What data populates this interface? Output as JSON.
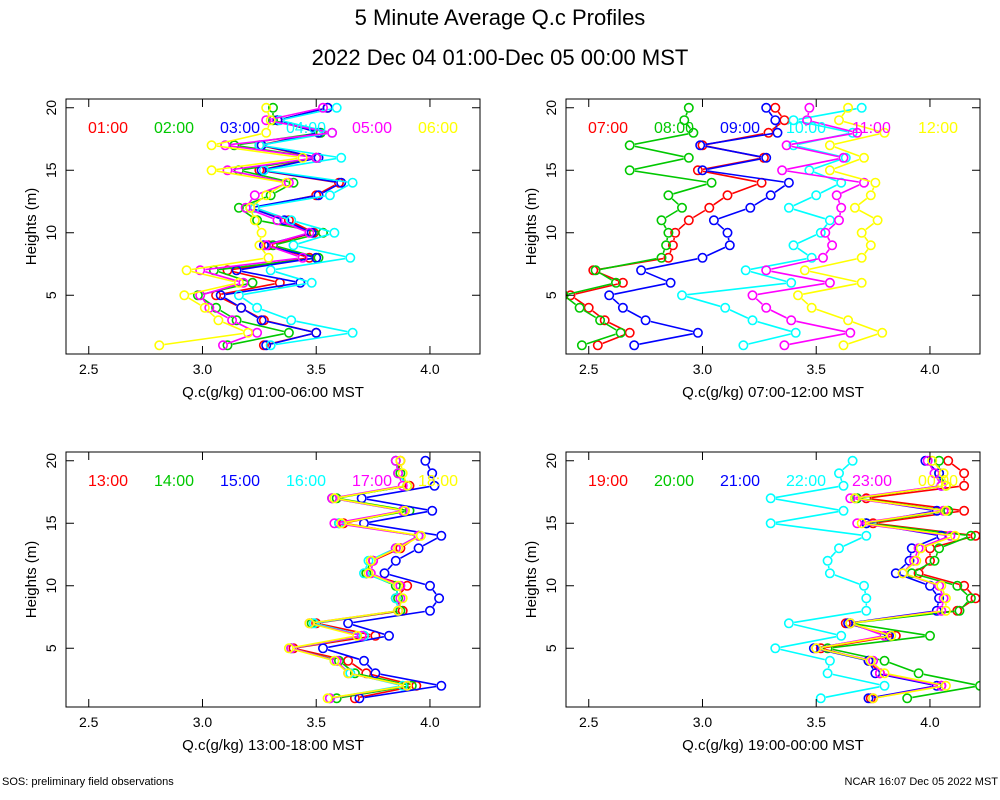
{
  "title": "5 Minute Average Q.c Profiles",
  "subtitle": "2022 Dec 04 01:00-Dec 05 00:00 MST",
  "footer": {
    "left": "SOS: preliminary field observations",
    "right": "NCAR 16:07 Dec 05 2022 MST"
  },
  "palette": {
    "red": "#ff0000",
    "green": "#00c800",
    "blue": "#0000ff",
    "cyan": "#00ffff",
    "magenta": "#ff00ff",
    "yellow": "#ffff00"
  },
  "chart_data": [
    {
      "type": "line",
      "xlabel": "Q.c(g/kg) 01:00-06:00 MST",
      "ylabel": "Heights (m)",
      "xlim": [
        2.4,
        4.22
      ],
      "ylim": [
        0.3,
        20.7
      ],
      "xticks": [
        "2.5",
        "3.0",
        "3.5",
        "4.0"
      ],
      "yticks": [
        "5",
        "10",
        "15",
        "20"
      ],
      "heights": [
        1,
        2,
        3,
        4,
        5,
        6,
        7,
        8,
        9,
        10,
        11,
        12,
        13,
        14,
        15,
        16,
        17,
        18,
        19,
        20
      ],
      "series": [
        {
          "name": "01:00",
          "color": "red",
          "values": [
            3.27,
            3.5,
            3.27,
            3.17,
            3.06,
            3.34,
            3.11,
            3.47,
            3.29,
            3.49,
            3.38,
            3.23,
            3.5,
            3.6,
            3.25,
            3.5,
            3.25,
            3.51,
            3.33,
            3.55
          ]
        },
        {
          "name": "02:00",
          "color": "green",
          "values": [
            3.11,
            3.38,
            3.15,
            3.06,
            2.98,
            3.22,
            3.05,
            3.51,
            3.31,
            3.53,
            3.24,
            3.16,
            3.3,
            3.4,
            3.16,
            3.5,
            3.14,
            3.52,
            3.31,
            3.31
          ]
        },
        {
          "name": "03:00",
          "color": "blue",
          "values": [
            3.28,
            3.5,
            3.26,
            3.17,
            3.08,
            3.43,
            3.15,
            3.5,
            3.27,
            3.48,
            3.36,
            3.21,
            3.51,
            3.61,
            3.26,
            3.51,
            3.26,
            3.51,
            3.33,
            3.55
          ]
        },
        {
          "name": "04:00",
          "color": "cyan",
          "values": [
            3.3,
            3.66,
            3.39,
            3.24,
            3.16,
            3.48,
            3.3,
            3.65,
            3.4,
            3.58,
            3.39,
            3.23,
            3.56,
            3.66,
            3.27,
            3.61,
            3.25,
            3.57,
            3.34,
            3.59
          ]
        },
        {
          "name": "05:00",
          "color": "magenta",
          "values": [
            3.09,
            3.24,
            3.13,
            3.03,
            2.99,
            3.18,
            2.99,
            3.44,
            3.28,
            3.47,
            3.33,
            3.19,
            3.23,
            3.38,
            3.11,
            3.5,
            3.1,
            3.57,
            3.28,
            3.53
          ]
        },
        {
          "name": "06:00",
          "color": "yellow",
          "values": [
            2.81,
            3.2,
            3.07,
            3.01,
            2.92,
            3.16,
            2.93,
            3.29,
            3.25,
            3.26,
            3.23,
            3.21,
            3.28,
            3.37,
            3.04,
            3.44,
            3.04,
            3.28,
            3.3,
            3.28
          ]
        }
      ]
    },
    {
      "type": "line",
      "xlabel": "Q.c(g/kg) 07:00-12:00 MST",
      "ylabel": "Heights (m)",
      "xlim": [
        2.4,
        4.22
      ],
      "ylim": [
        0.3,
        20.7
      ],
      "xticks": [
        "2.5",
        "3.0",
        "3.5",
        "4.0"
      ],
      "yticks": [
        "5",
        "10",
        "15",
        "20"
      ],
      "heights": [
        1,
        2,
        3,
        4,
        5,
        6,
        7,
        8,
        9,
        10,
        11,
        12,
        13,
        14,
        15,
        16,
        17,
        18,
        19,
        20
      ],
      "series": [
        {
          "name": "07:00",
          "color": "red",
          "values": [
            2.54,
            2.68,
            2.57,
            2.5,
            2.42,
            2.65,
            2.52,
            2.85,
            2.87,
            2.88,
            2.94,
            3.03,
            3.11,
            3.26,
            2.98,
            3.27,
            3.0,
            3.29,
            3.36,
            3.32
          ]
        },
        {
          "name": "08:00",
          "color": "green",
          "values": [
            2.47,
            2.64,
            2.55,
            2.46,
            2.39,
            2.62,
            2.53,
            2.82,
            2.84,
            2.85,
            2.82,
            2.91,
            2.85,
            3.04,
            2.68,
            2.94,
            2.68,
            2.96,
            2.92,
            2.94
          ]
        },
        {
          "name": "09:00",
          "color": "blue",
          "values": [
            2.7,
            2.98,
            2.75,
            2.65,
            2.59,
            2.86,
            2.73,
            3.0,
            3.12,
            3.11,
            3.05,
            3.21,
            3.3,
            3.38,
            3.0,
            3.28,
            2.99,
            3.33,
            3.32,
            3.28
          ]
        },
        {
          "name": "10:00",
          "color": "cyan",
          "values": [
            3.18,
            3.41,
            3.22,
            3.1,
            2.91,
            3.39,
            3.19,
            3.48,
            3.4,
            3.52,
            3.56,
            3.38,
            3.5,
            3.61,
            3.47,
            3.63,
            3.4,
            3.66,
            3.4,
            3.7
          ]
        },
        {
          "name": "11:00",
          "color": "magenta",
          "values": [
            3.36,
            3.65,
            3.39,
            3.28,
            3.22,
            3.56,
            3.28,
            3.53,
            3.57,
            3.54,
            3.6,
            3.61,
            3.59,
            3.71,
            3.35,
            3.62,
            3.37,
            3.68,
            3.46,
            3.47
          ]
        },
        {
          "name": "12:00",
          "color": "yellow",
          "values": [
            3.62,
            3.79,
            3.64,
            3.48,
            3.42,
            3.7,
            3.45,
            3.7,
            3.74,
            3.7,
            3.77,
            3.67,
            3.74,
            3.76,
            3.56,
            3.71,
            3.56,
            3.8,
            3.6,
            3.64
          ]
        }
      ]
    },
    {
      "type": "line",
      "xlabel": "Q.c(g/kg) 13:00-18:00 MST",
      "ylabel": "Heights (m)",
      "xlim": [
        2.4,
        4.22
      ],
      "ylim": [
        0.3,
        20.7
      ],
      "xticks": [
        "2.5",
        "3.0",
        "3.5",
        "4.0"
      ],
      "yticks": [
        "5",
        "10",
        "15",
        "20"
      ],
      "heights": [
        1,
        2,
        3,
        4,
        5,
        6,
        7,
        8,
        9,
        10,
        11,
        12,
        13,
        14,
        15,
        16,
        17,
        18,
        19,
        20
      ],
      "series": [
        {
          "name": "13:00",
          "color": "red",
          "values": [
            3.67,
            3.94,
            3.72,
            3.64,
            3.4,
            3.76,
            3.5,
            3.88,
            3.85,
            3.9,
            3.72,
            3.75,
            3.87,
            3.95,
            3.62,
            3.89,
            3.57,
            3.91,
            3.86,
            3.87
          ]
        },
        {
          "name": "14:00",
          "color": "green",
          "values": [
            3.59,
            3.92,
            3.67,
            3.6,
            3.39,
            3.71,
            3.48,
            3.87,
            3.86,
            3.85,
            3.72,
            3.74,
            3.85,
            3.95,
            3.6,
            3.91,
            3.59,
            3.9,
            3.87,
            3.85
          ]
        },
        {
          "name": "15:00",
          "color": "blue",
          "values": [
            3.69,
            4.05,
            3.76,
            3.71,
            3.53,
            3.82,
            3.64,
            4.0,
            4.04,
            4.0,
            3.8,
            3.85,
            3.95,
            4.05,
            3.71,
            4.01,
            3.7,
            4.02,
            4.01,
            3.98
          ]
        },
        {
          "name": "16:00",
          "color": "cyan",
          "values": [
            3.56,
            3.88,
            3.65,
            3.58,
            3.39,
            3.71,
            3.49,
            3.86,
            3.85,
            3.86,
            3.71,
            3.73,
            3.85,
            3.95,
            3.6,
            3.88,
            3.57,
            3.9,
            3.86,
            3.85
          ]
        },
        {
          "name": "17:00",
          "color": "magenta",
          "values": [
            3.56,
            3.9,
            3.64,
            3.59,
            3.39,
            3.7,
            3.47,
            3.86,
            3.87,
            3.87,
            3.74,
            3.75,
            3.85,
            3.95,
            3.58,
            3.88,
            3.57,
            3.88,
            3.86,
            3.85
          ]
        },
        {
          "name": "18:00",
          "color": "yellow",
          "values": [
            3.55,
            3.9,
            3.64,
            3.58,
            3.38,
            3.68,
            3.47,
            3.86,
            3.88,
            3.86,
            3.73,
            3.74,
            3.86,
            3.96,
            3.61,
            3.89,
            3.58,
            3.9,
            3.88,
            3.87
          ]
        }
      ]
    },
    {
      "type": "line",
      "xlabel": "Q.c(g/kg) 19:00-00:00 MST",
      "ylabel": "Heights (m)",
      "xlim": [
        2.4,
        4.22
      ],
      "ylim": [
        0.3,
        20.7
      ],
      "xticks": [
        "2.5",
        "3.0",
        "3.5",
        "4.0"
      ],
      "yticks": [
        "5",
        "10",
        "15",
        "20"
      ],
      "heights": [
        1,
        2,
        3,
        4,
        5,
        6,
        7,
        8,
        9,
        10,
        11,
        12,
        13,
        14,
        15,
        16,
        17,
        18,
        19,
        20
      ],
      "series": [
        {
          "name": "19:00",
          "color": "red",
          "values": [
            3.74,
            4.05,
            3.78,
            3.73,
            3.52,
            3.85,
            3.63,
            4.12,
            4.2,
            4.15,
            3.95,
            4.0,
            4.0,
            4.2,
            3.75,
            4.15,
            3.72,
            4.15,
            4.15,
            4.08
          ]
        },
        {
          "name": "20:00",
          "color": "green",
          "values": [
            3.9,
            4.22,
            3.95,
            3.8,
            3.55,
            4.0,
            3.65,
            4.13,
            4.18,
            4.12,
            3.92,
            4.02,
            4.04,
            4.18,
            3.72,
            4.08,
            3.68,
            4.07,
            4.04,
            4.04
          ]
        },
        {
          "name": "21:00",
          "color": "blue",
          "values": [
            3.73,
            4.03,
            3.76,
            3.73,
            3.49,
            3.82,
            3.64,
            4.03,
            4.04,
            4.0,
            3.85,
            3.91,
            3.92,
            4.05,
            3.72,
            4.03,
            3.67,
            4.05,
            4.04,
            3.98
          ]
        },
        {
          "name": "22:00",
          "color": "cyan",
          "values": [
            3.52,
            3.8,
            3.55,
            3.56,
            3.32,
            3.61,
            3.38,
            3.72,
            3.72,
            3.71,
            3.56,
            3.55,
            3.6,
            3.72,
            3.3,
            3.62,
            3.3,
            3.62,
            3.6,
            3.66
          ]
        },
        {
          "name": "23:00",
          "color": "magenta",
          "values": [
            3.75,
            4.05,
            3.78,
            3.75,
            3.5,
            3.8,
            3.65,
            4.05,
            4.06,
            4.04,
            3.88,
            3.93,
            3.95,
            4.09,
            3.68,
            4.06,
            3.65,
            4.05,
            4.02,
            3.99
          ]
        },
        {
          "name": "00:00",
          "color": "yellow",
          "values": [
            3.75,
            4.07,
            3.8,
            3.74,
            3.5,
            3.83,
            3.65,
            4.07,
            4.07,
            4.05,
            3.88,
            3.94,
            3.96,
            4.11,
            3.7,
            4.07,
            3.67,
            4.07,
            4.06,
            4.01
          ]
        }
      ]
    }
  ]
}
